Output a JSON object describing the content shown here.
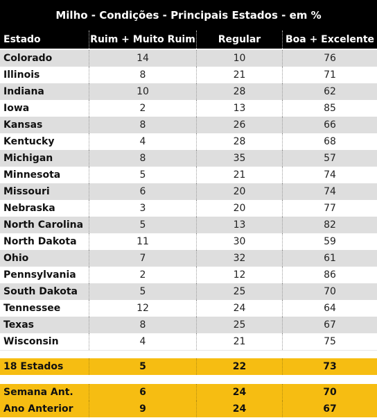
{
  "chart_data": {
    "type": "table",
    "title": "Milho - Condições - Principais Estados - em %",
    "columns": [
      "Estado",
      "Ruim + Muito Ruim",
      "Regular",
      "Boa + Excelente"
    ],
    "rows": [
      {
        "state": "Colorado",
        "values": [
          "14",
          "10",
          "76"
        ]
      },
      {
        "state": "Illinois",
        "values": [
          "8",
          "21",
          "71"
        ]
      },
      {
        "state": "Indiana",
        "values": [
          "10",
          "28",
          "62"
        ]
      },
      {
        "state": "Iowa",
        "values": [
          "2",
          "13",
          "85"
        ]
      },
      {
        "state": "Kansas",
        "values": [
          "8",
          "26",
          "66"
        ]
      },
      {
        "state": "Kentucky",
        "values": [
          "4",
          "28",
          "68"
        ]
      },
      {
        "state": "Michigan",
        "values": [
          "8",
          "35",
          "57"
        ]
      },
      {
        "state": "Minnesota",
        "values": [
          "5",
          "21",
          "74"
        ]
      },
      {
        "state": "Missouri",
        "values": [
          "6",
          "20",
          "74"
        ]
      },
      {
        "state": "Nebraska",
        "values": [
          "3",
          "20",
          "77"
        ]
      },
      {
        "state": "North Carolina",
        "values": [
          "5",
          "13",
          "82"
        ]
      },
      {
        "state": "North Dakota",
        "values": [
          "11",
          "30",
          "59"
        ]
      },
      {
        "state": "Ohio",
        "values": [
          "7",
          "32",
          "61"
        ]
      },
      {
        "state": "Pennsylvania",
        "values": [
          "2",
          "12",
          "86"
        ]
      },
      {
        "state": "South Dakota",
        "values": [
          "5",
          "25",
          "70"
        ]
      },
      {
        "state": "Tennessee",
        "values": [
          "12",
          "24",
          "64"
        ]
      },
      {
        "state": "Texas",
        "values": [
          "8",
          "25",
          "67"
        ]
      },
      {
        "state": "Wisconsin",
        "values": [
          "4",
          "21",
          "75"
        ]
      }
    ],
    "summary": [
      {
        "label": "18 Estados",
        "values": [
          "5",
          "22",
          "73"
        ]
      },
      {
        "label": "Semana Ant.",
        "values": [
          "6",
          "24",
          "70"
        ]
      },
      {
        "label": "Ano Anterior",
        "values": [
          "9",
          "24",
          "67"
        ]
      }
    ],
    "colors": {
      "header_bg": "#000000",
      "header_text": "#ffffff",
      "stripe": "#dedede",
      "highlight": "#f6bd12"
    }
  }
}
